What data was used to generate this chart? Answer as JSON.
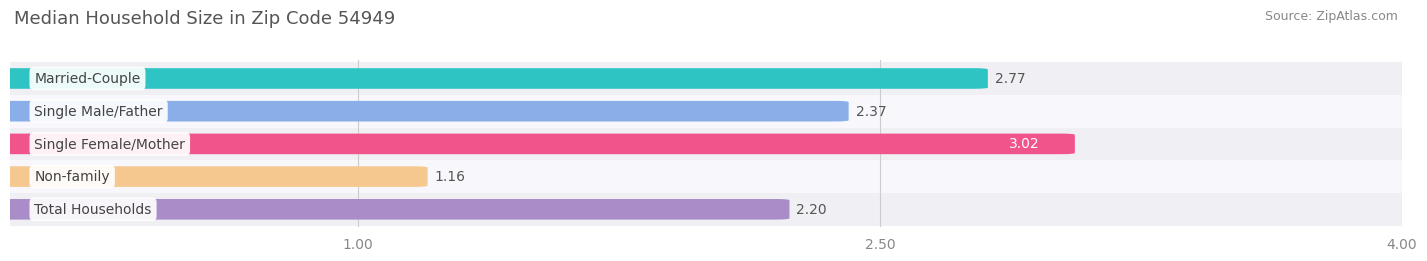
{
  "title": "Median Household Size in Zip Code 54949",
  "source": "Source: ZipAtlas.com",
  "categories": [
    "Married-Couple",
    "Single Male/Father",
    "Single Female/Mother",
    "Non-family",
    "Total Households"
  ],
  "values": [
    2.77,
    2.37,
    3.02,
    1.16,
    2.2
  ],
  "bar_colors": [
    "#2ec4c4",
    "#8aaee8",
    "#f0548a",
    "#f5c890",
    "#a98cc8"
  ],
  "row_bg_colors": [
    "#f0f0f4",
    "#f8f8fc",
    "#f0f0f4",
    "#f8f8fc",
    "#f0f0f4"
  ],
  "value_colors": [
    "#555555",
    "#555555",
    "#ffffff",
    "#555555",
    "#555555"
  ],
  "xlim": [
    0,
    4.0
  ],
  "xstart": 0.0,
  "xticks": [
    1.0,
    2.5,
    4.0
  ],
  "xtick_labels": [
    "1.00",
    "2.50",
    "4.00"
  ],
  "background_color": "#ffffff",
  "title_fontsize": 13,
  "source_fontsize": 9,
  "label_fontsize": 10,
  "value_fontsize": 10,
  "tick_fontsize": 10
}
